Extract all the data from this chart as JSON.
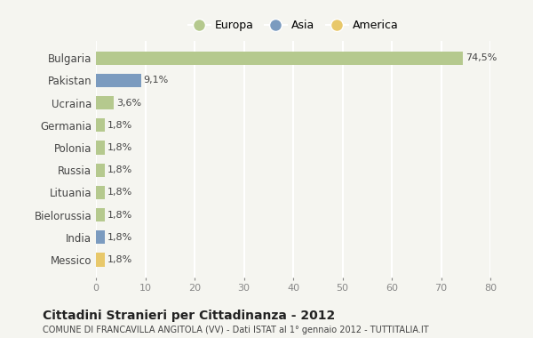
{
  "categories": [
    "Bulgaria",
    "Pakistan",
    "Ucraina",
    "Germania",
    "Polonia",
    "Russia",
    "Lituania",
    "Bielorussia",
    "India",
    "Messico"
  ],
  "values": [
    74.5,
    9.1,
    3.6,
    1.8,
    1.8,
    1.8,
    1.8,
    1.8,
    1.8,
    1.8
  ],
  "labels": [
    "74,5%",
    "9,1%",
    "3,6%",
    "1,8%",
    "1,8%",
    "1,8%",
    "1,8%",
    "1,8%",
    "1,8%",
    "1,8%"
  ],
  "colors": [
    "#b5c98e",
    "#7b9bbf",
    "#b5c98e",
    "#b5c98e",
    "#b5c98e",
    "#b5c98e",
    "#b5c98e",
    "#b5c98e",
    "#7b9bbf",
    "#e8c86a"
  ],
  "legend_labels": [
    "Europa",
    "Asia",
    "America"
  ],
  "legend_colors": [
    "#b5c98e",
    "#7b9bbf",
    "#e8c86a"
  ],
  "title": "Cittadini Stranieri per Cittadinanza - 2012",
  "subtitle": "COMUNE DI FRANCAVILLA ANGITOLA (VV) - Dati ISTAT al 1° gennaio 2012 - TUTTITALIA.IT",
  "xlim": [
    0,
    80
  ],
  "xticks": [
    0,
    10,
    20,
    30,
    40,
    50,
    60,
    70,
    80
  ],
  "background_color": "#f5f5f0",
  "grid_color": "#ffffff",
  "bar_height": 0.6
}
